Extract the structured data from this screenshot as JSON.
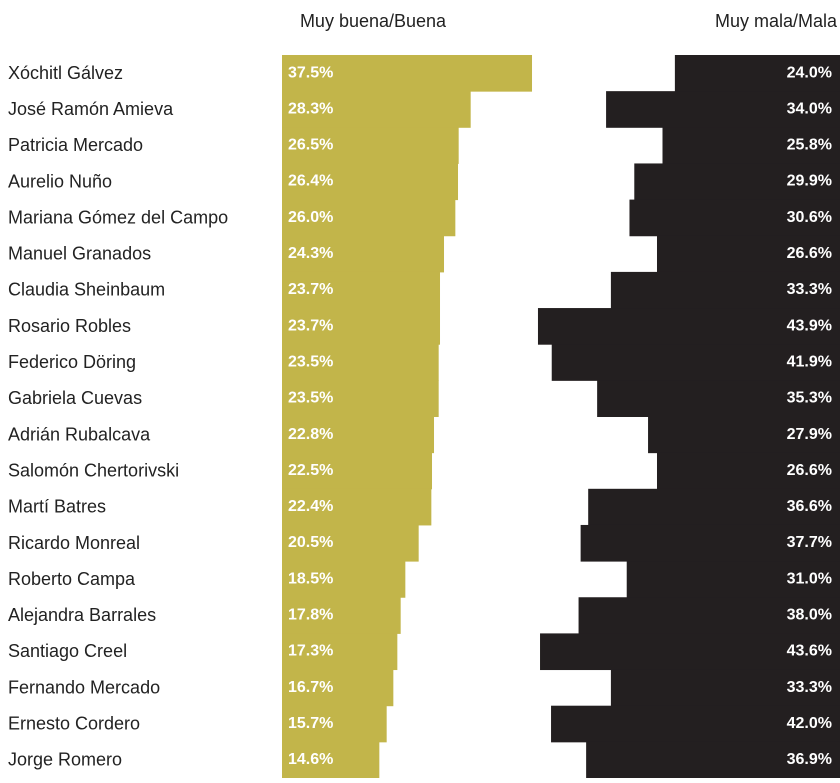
{
  "chart_data": {
    "type": "bar",
    "orientation": "horizontal",
    "categories": [
      "Xóchitl Gálvez",
      "José Ramón Amieva",
      "Patricia Mercado",
      "Aurelio Nuño",
      "Mariana Gómez del Campo",
      "Manuel Granados",
      "Claudia Sheinbaum",
      "Rosario Robles",
      "Federico Döring",
      "Gabriela Cuevas",
      "Adrián Rubalcava",
      "Salomón Chertorivski",
      "Martí Batres",
      "Ricardo Monreal",
      "Roberto Campa",
      "Alejandra Barrales",
      "Santiago Creel",
      "Fernando Mercado",
      "Ernesto Cordero",
      "Jorge Romero"
    ],
    "series": [
      {
        "name": "Muy buena/Buena",
        "color": "#c2b54a",
        "values": [
          37.5,
          28.3,
          26.5,
          26.4,
          26.0,
          24.3,
          23.7,
          23.7,
          23.5,
          23.5,
          22.8,
          22.5,
          22.4,
          20.5,
          18.5,
          17.8,
          17.3,
          16.7,
          15.7,
          14.6
        ],
        "value_labels": [
          "37.5%",
          "28.3%",
          "26.5%",
          "26.4%",
          "26.0%",
          "24.3%",
          "23.7%",
          "23.7%",
          "23.5%",
          "23.5%",
          "22.8%",
          "22.5%",
          "22.4%",
          "20.5%",
          "18.5%",
          "17.8%",
          "17.3%",
          "16.7%",
          "15.7%",
          "14.6%"
        ]
      },
      {
        "name": "Muy mala/Mala",
        "color": "#231f20",
        "values": [
          24.0,
          34.0,
          25.8,
          29.9,
          30.6,
          26.6,
          33.3,
          43.9,
          41.9,
          35.3,
          27.9,
          26.6,
          36.6,
          37.7,
          31.0,
          38.0,
          43.6,
          33.3,
          42.0,
          36.9
        ],
        "value_labels": [
          "24.0%",
          "34.0%",
          "25.8%",
          "29.9%",
          "30.6%",
          "26.6%",
          "33.3%",
          "43.9%",
          "41.9%",
          "35.3%",
          "27.9%",
          "26.6%",
          "36.6%",
          "37.7%",
          "31.0%",
          "38.0%",
          "43.6%",
          "33.3%",
          "42.0%",
          "36.9%"
        ]
      }
    ]
  }
}
